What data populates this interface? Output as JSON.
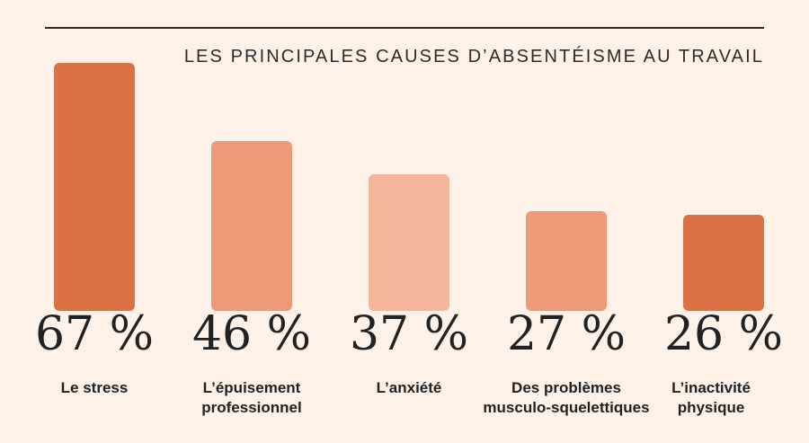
{
  "chart_data": {
    "type": "bar",
    "title": "LES PRINCIPALES CAUSES D’ABSENTÉISME AU TRAVAIL",
    "categories": [
      [
        "Le stress"
      ],
      [
        "L’épuisement",
        "professionnel"
      ],
      [
        "L’anxiété"
      ],
      [
        "Des problèmes",
        "musculo-squelettiques"
      ],
      [
        "L’inactivité",
        "physique"
      ]
    ],
    "values": [
      67,
      46,
      37,
      27,
      26
    ],
    "value_labels": [
      "67 %",
      "46 %",
      "37 %",
      "27 %",
      "26 %"
    ],
    "colors": [
      "#dd7146",
      "#ed9a78",
      "#f4b59a",
      "#ed9a78",
      "#dd7146"
    ],
    "ylim": [
      0,
      67
    ],
    "xlabel": "",
    "ylabel": "",
    "grid": false
  }
}
